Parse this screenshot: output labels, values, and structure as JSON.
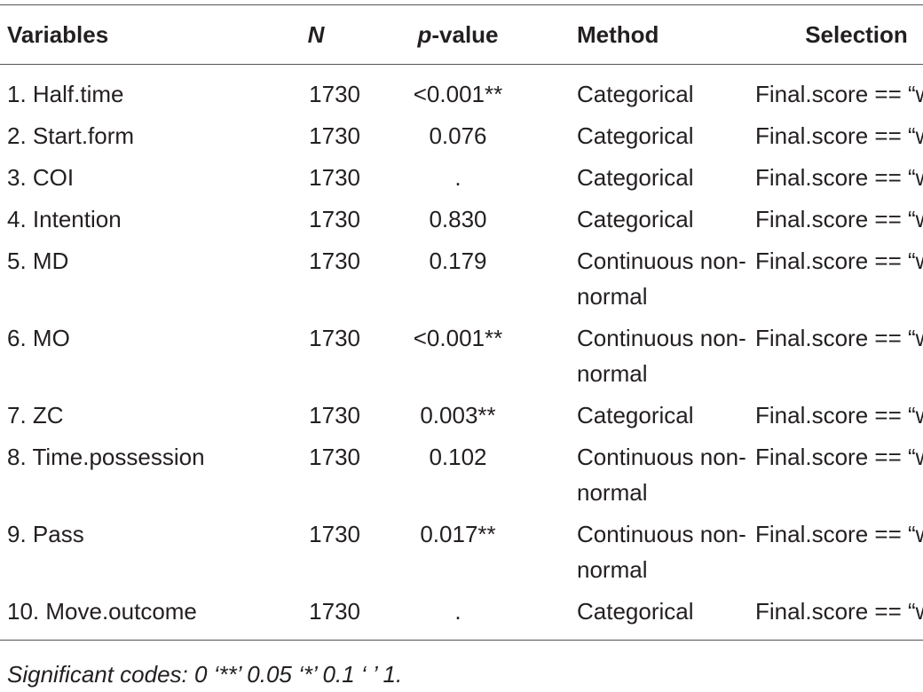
{
  "table": {
    "columns": [
      "Variables",
      "N",
      "p-value",
      "Method",
      "Selection"
    ],
    "rows": [
      [
        "1. Half.time",
        "1730",
        "<0.001**",
        "Categorical",
        "Final.score == “w”"
      ],
      [
        "2. Start.form",
        "1730",
        "0.076",
        "Categorical",
        "Final.score == “w”"
      ],
      [
        "3. COI",
        "1730",
        ".",
        "Categorical",
        "Final.score == “w”"
      ],
      [
        "4. Intention",
        "1730",
        "0.830",
        "Categorical",
        "Final.score == “w”"
      ],
      [
        "5. MD",
        "1730",
        "0.179",
        "Continuous non-normal",
        "Final.score == “w”"
      ],
      [
        "6. MO",
        "1730",
        "<0.001**",
        "Continuous non-normal",
        "Final.score == “w”"
      ],
      [
        "7. ZC",
        "1730",
        "0.003**",
        "Categorical",
        "Final.score == “w”"
      ],
      [
        "8. Time.possession",
        "1730",
        "0.102",
        "Continuous non-normal",
        "Final.score == “w”"
      ],
      [
        "9. Pass",
        "1730",
        "0.017**",
        "Continuous non-normal",
        "Final.score == “w”"
      ],
      [
        "10. Move.outcome",
        "1730",
        ".",
        "Categorical",
        "Final.score == “w”"
      ]
    ],
    "footnote": "Significant codes: 0 ‘**’ 0.05 ‘*’ 0.1 ‘ ’ 1."
  }
}
